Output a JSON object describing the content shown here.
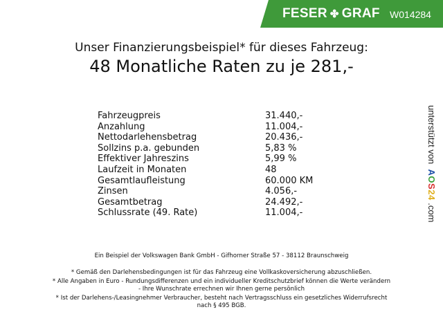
{
  "header": {
    "brand_left": "FESER",
    "brand_right": "GRAF",
    "brand_icon": "clover-icon",
    "vehicle_code": "W014284",
    "accent_color": "#3f9a3a"
  },
  "title": {
    "line1": "Unser Finanzierungsbeispiel* für dieses Fahrzeug:",
    "line2": "48 Monatliche Raten zu je 281,-"
  },
  "rows": [
    {
      "label": "Fahrzeugpreis",
      "value": "31.440,-"
    },
    {
      "label": "Anzahlung",
      "value": "11.004,-"
    },
    {
      "label": "Nettodarlehensbetrag",
      "value": "20.436,-"
    },
    {
      "label": "Sollzins p.a. gebunden",
      "value": "5,83 %"
    },
    {
      "label": "Effektiver Jahreszins",
      "value": "5,99 %"
    },
    {
      "label": "Laufzeit in Monaten",
      "value": "48"
    },
    {
      "label": "Gesamtlaufleistung",
      "value": "60.000 KM"
    },
    {
      "label": "Zinsen",
      "value": "4.056,-"
    },
    {
      "label": "Gesamtbetrag",
      "value": "24.492,-"
    },
    {
      "label": "Schlussrate (49. Rate)",
      "value": "11.004,-"
    }
  ],
  "side": {
    "prefix": "unterstützt von",
    "logo": [
      "A",
      "O",
      "S",
      "2",
      "4"
    ],
    "suffix": ".com"
  },
  "footer": {
    "bank": "Ein Beispiel der Volkswagen Bank GmbH - Gifhorner Straße 57 - 38112 Braunschweig",
    "note1": "* Gemäß den Darlehensbedingungen ist für das Fahrzeug eine Vollkaskoversicherung abzuschließen.",
    "note2a": "* Alle Angaben in Euro - Rundungsdifferenzen und ein individueller Kreditschutzbrief können die Werte verändern",
    "note2b": "- Ihre Wunschrate errechnen wir Ihnen gerne persönlich",
    "note3a": "* Ist der Darlehens-/Leasingnehmer Verbraucher, besteht nach Vertragsschluss ein gesetzliches Widerrufsrecht",
    "note3b": "nach § 495 BGB."
  }
}
